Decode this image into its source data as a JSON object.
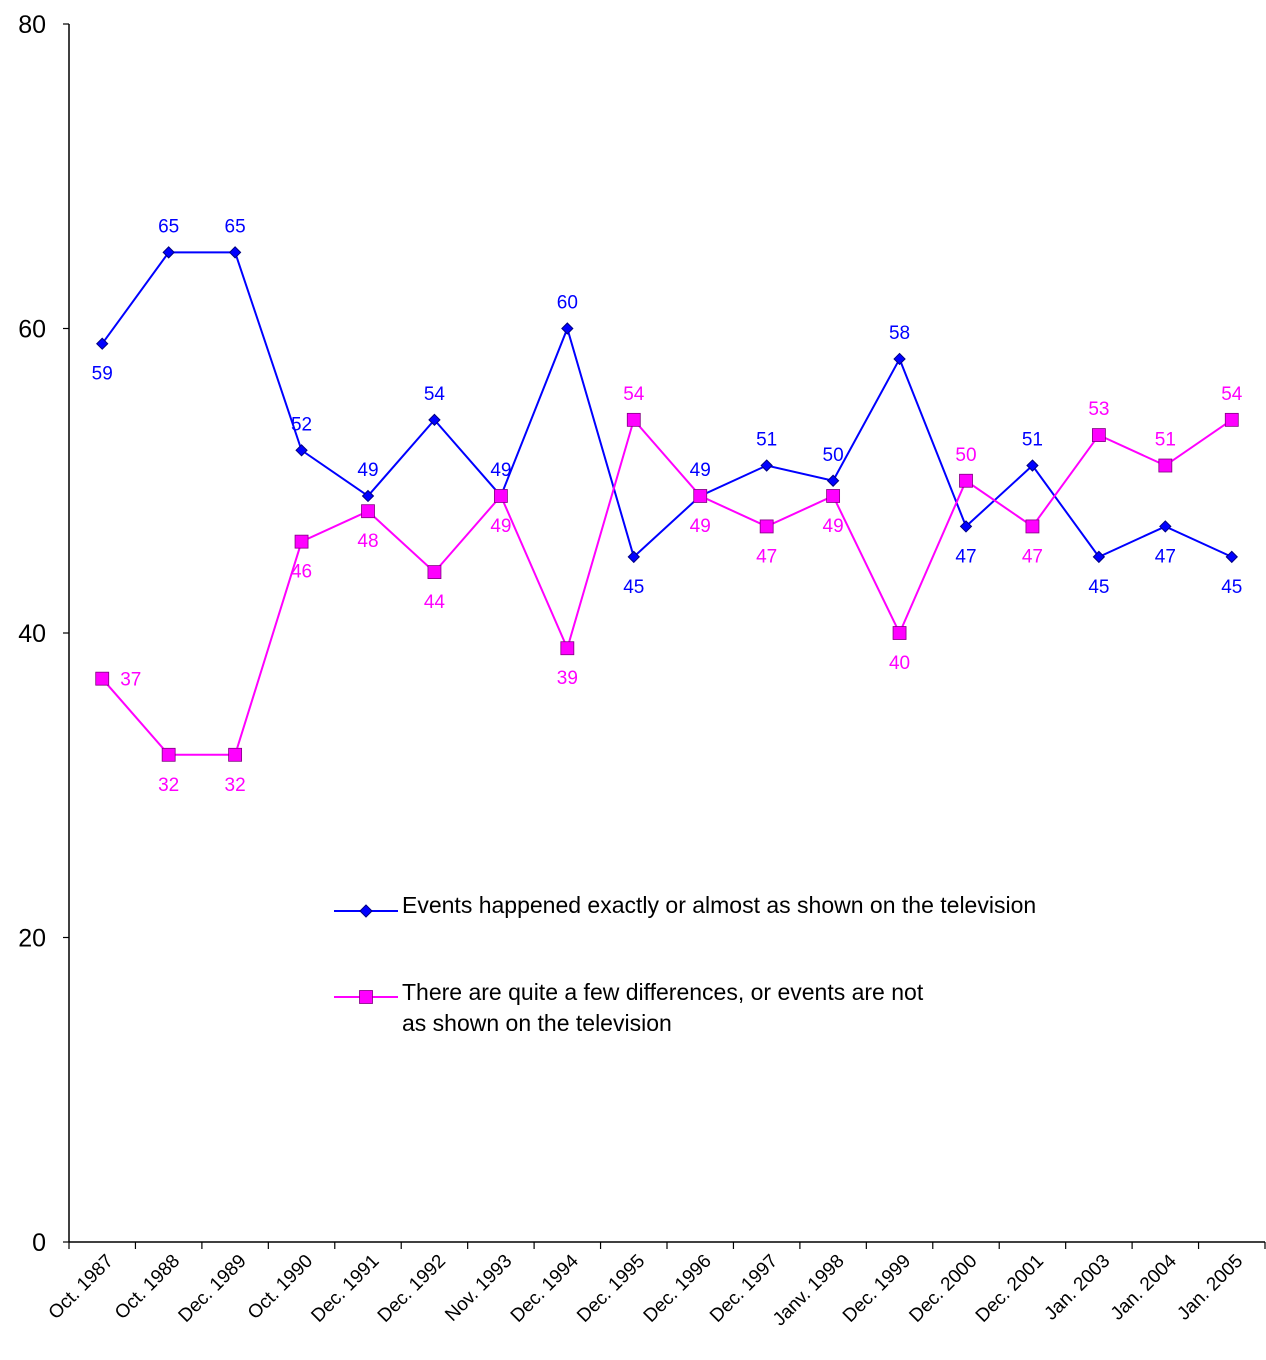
{
  "colors": {
    "series1": "#0000FF",
    "series2": "#FF00FF",
    "axis": "#000000"
  },
  "chart_data": {
    "type": "line",
    "title": "",
    "xlabel": "",
    "ylabel": "",
    "ylim": [
      0,
      80
    ],
    "yticks": [
      0,
      20,
      40,
      60,
      80
    ],
    "grid": false,
    "legend_position": "center-right",
    "categories": [
      "Oct. 1987",
      "Oct. 1988",
      "Dec. 1989",
      "Oct. 1990",
      "Dec. 1991",
      "Dec. 1992",
      "Nov. 1993",
      "Dec. 1994",
      "Dec. 1995",
      "Dec. 1996",
      "Dec. 1997",
      "Janv. 1998",
      "Dec. 1999",
      "Dec. 2000",
      "Dec. 2001",
      "Jan. 2003",
      "Jan. 2004",
      "Jan. 2005"
    ],
    "series": [
      {
        "name": "Events happened exactly or almost as shown on the television",
        "marker": "diamond",
        "values": [
          59,
          65,
          65,
          52,
          49,
          54,
          49,
          60,
          45,
          49,
          51,
          50,
          58,
          47,
          51,
          45,
          47,
          45
        ]
      },
      {
        "name": "There are quite a few differences, or events are not as shown on the television",
        "marker": "square",
        "values": [
          37,
          32,
          32,
          46,
          48,
          44,
          49,
          39,
          54,
          49,
          47,
          49,
          40,
          50,
          47,
          53,
          51,
          54
        ]
      }
    ]
  }
}
